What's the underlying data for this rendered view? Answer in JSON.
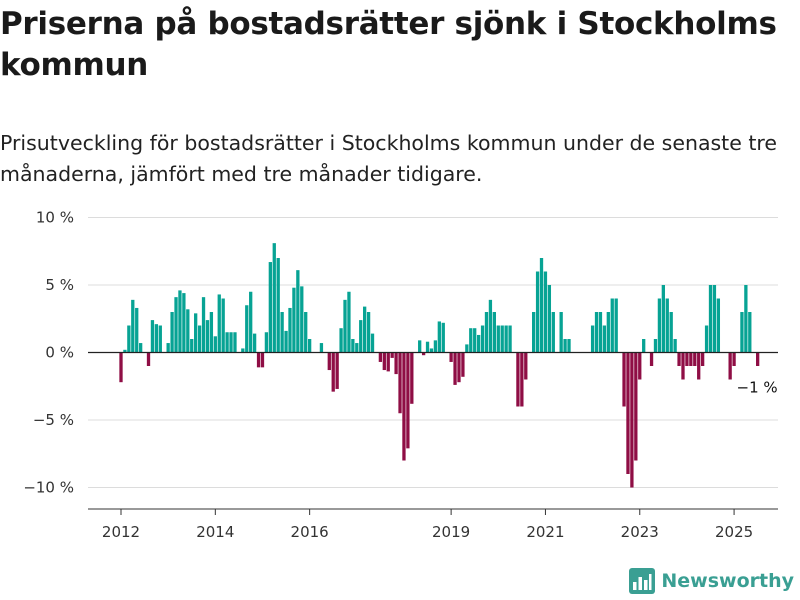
{
  "title": "Priserna på bostadsrätter sjönk i Stockholms kommun",
  "subtitle": "Prisutveckling för bostadsrätter i Stockholms kommun under de senaste tre månaderna, jämfört med tre månader tidigare.",
  "logo_text": "Newsworthy",
  "colors": {
    "positive": "#07a394",
    "negative": "#8f0e45",
    "grid": "#dcdcdc",
    "axis": "#333333",
    "brand": "#3a9f93"
  },
  "chart_data": {
    "type": "bar",
    "title": "Priserna på bostadsrätter sjönk i Stockholms kommun",
    "subtitle": "Prisutveckling för bostadsrätter i Stockholms kommun under de senaste tre månaderna, jämfört med tre månader tidigare.",
    "xlabel": "",
    "ylabel": "",
    "unit": "%",
    "ylim": [
      -12,
      10
    ],
    "y_ticks": [
      10,
      5,
      0,
      -5,
      -10
    ],
    "y_tick_labels": [
      "10 %",
      "5 %",
      "0 %",
      "−5 %",
      "−10 %"
    ],
    "x_ticks": [
      "2012",
      "2014",
      "2016",
      "2019",
      "2021",
      "2023",
      "2025"
    ],
    "x_tick_dates": [
      "2012-01",
      "2014-01",
      "2016-01",
      "2019-01",
      "2021-01",
      "2023-01",
      "2025-01"
    ],
    "grid": true,
    "last_value_label": "−1 %",
    "bars": [
      {
        "date": "2012-01",
        "value": -2.2
      },
      {
        "date": "2012-02",
        "value": 0.2
      },
      {
        "date": "2012-03",
        "value": 2.0
      },
      {
        "date": "2012-04",
        "value": 3.9
      },
      {
        "date": "2012-05",
        "value": 3.3
      },
      {
        "date": "2012-06",
        "value": 0.7
      },
      {
        "date": "2012-07",
        "value": 0.0
      },
      {
        "date": "2012-08",
        "value": -1.0
      },
      {
        "date": "2012-09",
        "value": 2.4
      },
      {
        "date": "2012-10",
        "value": 2.1
      },
      {
        "date": "2012-11",
        "value": 2.0
      },
      {
        "date": "2012-12",
        "value": 0.0
      },
      {
        "date": "2013-01",
        "value": 0.7
      },
      {
        "date": "2013-02",
        "value": 3.0
      },
      {
        "date": "2013-03",
        "value": 4.1
      },
      {
        "date": "2013-04",
        "value": 4.6
      },
      {
        "date": "2013-05",
        "value": 4.4
      },
      {
        "date": "2013-06",
        "value": 3.2
      },
      {
        "date": "2013-07",
        "value": 1.0
      },
      {
        "date": "2013-08",
        "value": 2.9
      },
      {
        "date": "2013-09",
        "value": 2.0
      },
      {
        "date": "2013-10",
        "value": 4.1
      },
      {
        "date": "2013-11",
        "value": 2.4
      },
      {
        "date": "2013-12",
        "value": 3.0
      },
      {
        "date": "2014-01",
        "value": 1.2
      },
      {
        "date": "2014-02",
        "value": 4.3
      },
      {
        "date": "2014-03",
        "value": 4.0
      },
      {
        "date": "2014-04",
        "value": 1.5
      },
      {
        "date": "2014-05",
        "value": 1.5
      },
      {
        "date": "2014-06",
        "value": 1.5
      },
      {
        "date": "2014-07",
        "value": 0.0
      },
      {
        "date": "2014-08",
        "value": 0.3
      },
      {
        "date": "2014-09",
        "value": 3.5
      },
      {
        "date": "2014-10",
        "value": 4.5
      },
      {
        "date": "2014-11",
        "value": 1.4
      },
      {
        "date": "2014-12",
        "value": -1.1
      },
      {
        "date": "2015-01",
        "value": -1.1
      },
      {
        "date": "2015-02",
        "value": 1.5
      },
      {
        "date": "2015-03",
        "value": 6.7
      },
      {
        "date": "2015-04",
        "value": 8.1
      },
      {
        "date": "2015-05",
        "value": 7.0
      },
      {
        "date": "2015-06",
        "value": 3.0
      },
      {
        "date": "2015-07",
        "value": 1.6
      },
      {
        "date": "2015-08",
        "value": 3.3
      },
      {
        "date": "2015-09",
        "value": 4.8
      },
      {
        "date": "2015-10",
        "value": 6.1
      },
      {
        "date": "2015-11",
        "value": 4.9
      },
      {
        "date": "2015-12",
        "value": 3.0
      },
      {
        "date": "2016-01",
        "value": 1.0
      },
      {
        "date": "2016-02",
        "value": 0.0
      },
      {
        "date": "2016-03",
        "value": 0.0
      },
      {
        "date": "2016-04",
        "value": 0.7
      },
      {
        "date": "2016-05",
        "value": 0.0
      },
      {
        "date": "2016-06",
        "value": -1.3
      },
      {
        "date": "2016-07",
        "value": -2.9
      },
      {
        "date": "2016-08",
        "value": -2.7
      },
      {
        "date": "2016-09",
        "value": 1.8
      },
      {
        "date": "2016-10",
        "value": 3.9
      },
      {
        "date": "2016-11",
        "value": 4.5
      },
      {
        "date": "2016-12",
        "value": 1.0
      },
      {
        "date": "2017-01",
        "value": 0.7
      },
      {
        "date": "2017-02",
        "value": 2.4
      },
      {
        "date": "2017-03",
        "value": 3.4
      },
      {
        "date": "2017-04",
        "value": 3.0
      },
      {
        "date": "2017-05",
        "value": 1.4
      },
      {
        "date": "2017-06",
        "value": 0.0
      },
      {
        "date": "2017-07",
        "value": -0.7
      },
      {
        "date": "2017-08",
        "value": -1.3
      },
      {
        "date": "2017-09",
        "value": -1.4
      },
      {
        "date": "2017-10",
        "value": -0.4
      },
      {
        "date": "2017-11",
        "value": -1.6
      },
      {
        "date": "2017-12",
        "value": -4.5
      },
      {
        "date": "2018-01",
        "value": -8.0
      },
      {
        "date": "2018-02",
        "value": -7.1
      },
      {
        "date": "2018-03",
        "value": -3.8
      },
      {
        "date": "2018-04",
        "value": 0.0
      },
      {
        "date": "2018-05",
        "value": 0.9
      },
      {
        "date": "2018-06",
        "value": -0.2
      },
      {
        "date": "2018-07",
        "value": 0.8
      },
      {
        "date": "2018-08",
        "value": 0.3
      },
      {
        "date": "2018-09",
        "value": 0.9
      },
      {
        "date": "2018-10",
        "value": 2.3
      },
      {
        "date": "2018-11",
        "value": 2.2
      },
      {
        "date": "2018-12",
        "value": 0.0
      },
      {
        "date": "2019-01",
        "value": -0.7
      },
      {
        "date": "2019-02",
        "value": -2.4
      },
      {
        "date": "2019-03",
        "value": -2.2
      },
      {
        "date": "2019-04",
        "value": -1.8
      },
      {
        "date": "2019-05",
        "value": 0.6
      },
      {
        "date": "2019-06",
        "value": 1.8
      },
      {
        "date": "2019-07",
        "value": 1.8
      },
      {
        "date": "2019-08",
        "value": 1.3
      },
      {
        "date": "2019-09",
        "value": 2.0
      },
      {
        "date": "2019-10",
        "value": 3.0
      },
      {
        "date": "2019-11",
        "value": 3.9
      },
      {
        "date": "2019-12",
        "value": 3.0
      },
      {
        "date": "2020-01",
        "value": 2.0
      },
      {
        "date": "2020-02",
        "value": 2.0
      },
      {
        "date": "2020-03",
        "value": 2.0
      },
      {
        "date": "2020-04",
        "value": 2.0
      },
      {
        "date": "2020-05",
        "value": 0.0
      },
      {
        "date": "2020-06",
        "value": -4.0
      },
      {
        "date": "2020-07",
        "value": -4.0
      },
      {
        "date": "2020-08",
        "value": -2.0
      },
      {
        "date": "2020-09",
        "value": 0.0
      },
      {
        "date": "2020-10",
        "value": 3.0
      },
      {
        "date": "2020-11",
        "value": 6.0
      },
      {
        "date": "2020-12",
        "value": 7.0
      },
      {
        "date": "2021-01",
        "value": 6.0
      },
      {
        "date": "2021-02",
        "value": 5.0
      },
      {
        "date": "2021-03",
        "value": 3.0
      },
      {
        "date": "2021-04",
        "value": 0.0
      },
      {
        "date": "2021-05",
        "value": 3.0
      },
      {
        "date": "2021-06",
        "value": 1.0
      },
      {
        "date": "2021-07",
        "value": 1.0
      },
      {
        "date": "2021-08",
        "value": 0.0
      },
      {
        "date": "2021-09",
        "value": 0.0
      },
      {
        "date": "2021-10",
        "value": 0.0
      },
      {
        "date": "2021-11",
        "value": 0.0
      },
      {
        "date": "2021-12",
        "value": 0.0
      },
      {
        "date": "2022-01",
        "value": 2.0
      },
      {
        "date": "2022-02",
        "value": 3.0
      },
      {
        "date": "2022-03",
        "value": 3.0
      },
      {
        "date": "2022-04",
        "value": 2.0
      },
      {
        "date": "2022-05",
        "value": 3.0
      },
      {
        "date": "2022-06",
        "value": 4.0
      },
      {
        "date": "2022-07",
        "value": 4.0
      },
      {
        "date": "2022-08",
        "value": 0.0
      },
      {
        "date": "2022-09",
        "value": -4.0
      },
      {
        "date": "2022-10",
        "value": -9.0
      },
      {
        "date": "2022-11",
        "value": -10.0
      },
      {
        "date": "2022-12",
        "value": -8.0
      },
      {
        "date": "2023-01",
        "value": -2.0
      },
      {
        "date": "2023-02",
        "value": 1.0
      },
      {
        "date": "2023-03",
        "value": 0.0
      },
      {
        "date": "2023-04",
        "value": -1.0
      },
      {
        "date": "2023-05",
        "value": 1.0
      },
      {
        "date": "2023-06",
        "value": 4.0
      },
      {
        "date": "2023-07",
        "value": 5.0
      },
      {
        "date": "2023-08",
        "value": 4.0
      },
      {
        "date": "2023-09",
        "value": 3.0
      },
      {
        "date": "2023-10",
        "value": 1.0
      },
      {
        "date": "2023-11",
        "value": -1.0
      },
      {
        "date": "2023-12",
        "value": -2.0
      },
      {
        "date": "2024-01",
        "value": -1.0
      },
      {
        "date": "2024-02",
        "value": -1.0
      },
      {
        "date": "2024-03",
        "value": -1.0
      },
      {
        "date": "2024-04",
        "value": -2.0
      },
      {
        "date": "2024-05",
        "value": -1.0
      },
      {
        "date": "2024-06",
        "value": 2.0
      },
      {
        "date": "2024-07",
        "value": 5.0
      },
      {
        "date": "2024-08",
        "value": 5.0
      },
      {
        "date": "2024-09",
        "value": 4.0
      },
      {
        "date": "2024-10",
        "value": 0.0
      },
      {
        "date": "2024-11",
        "value": 0.0
      },
      {
        "date": "2024-12",
        "value": -2.0
      },
      {
        "date": "2025-01",
        "value": -1.0
      },
      {
        "date": "2025-02",
        "value": 0.0
      },
      {
        "date": "2025-03",
        "value": 3.0
      },
      {
        "date": "2025-04",
        "value": 5.0
      },
      {
        "date": "2025-05",
        "value": 3.0
      },
      {
        "date": "2025-06",
        "value": 0.0
      },
      {
        "date": "2025-07",
        "value": -1.0
      }
    ]
  }
}
